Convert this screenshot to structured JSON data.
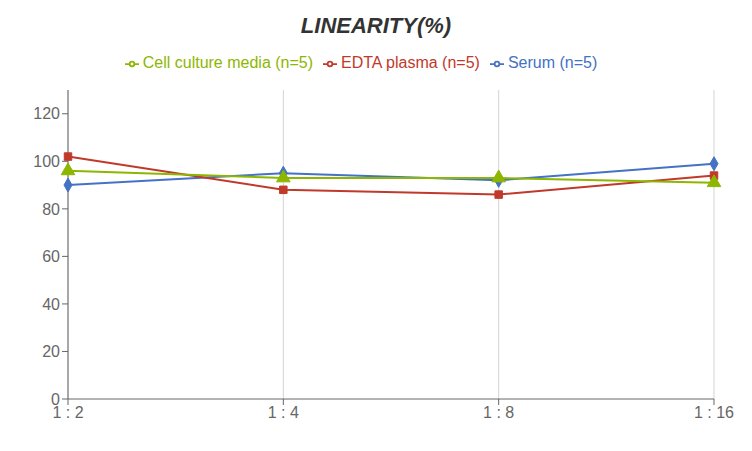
{
  "chart_data": {
    "type": "line",
    "title": "LINEARITY(%)",
    "categories": [
      "1 : 2",
      "1 : 4",
      "1 : 8",
      "1 : 16"
    ],
    "series": [
      {
        "name": "Serum (n=5)",
        "color": "#4472C4",
        "marker": "diamond",
        "values": [
          90,
          95,
          92,
          99
        ]
      },
      {
        "name": "EDTA plasma (n=5)",
        "color": "#C0392B",
        "marker": "square",
        "values": [
          102,
          88,
          86,
          94
        ]
      },
      {
        "name": "Cell culture media (n=5)",
        "color": "#8DB600",
        "marker": "triangle",
        "values": [
          96,
          93,
          93,
          91
        ]
      }
    ],
    "ylim": [
      0,
      130
    ],
    "yticks": [
      0,
      20,
      40,
      60,
      80,
      100,
      120
    ],
    "grid": "x",
    "legend": "top"
  }
}
